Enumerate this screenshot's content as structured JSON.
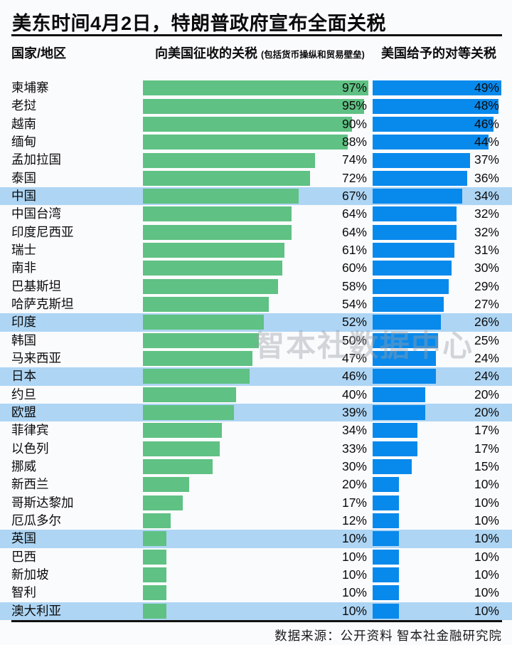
{
  "title": "美东时间4月2日，特朗普政府宣布全面关税",
  "header": {
    "country": "国家/地区",
    "charged": "向美国征收的关税",
    "charged_note": "(包括货币操纵和贸易壁垒)",
    "reciprocal": "美国给予的对等关税"
  },
  "watermark": "智本社数据中心",
  "footer": "数据来源：公开资料  智本社金融研究院",
  "colors": {
    "charged_bar": "#5fc183",
    "reciprocal_bar": "#0889ec",
    "highlight_row": "#aed5f4",
    "background": "#fafbfd",
    "text": "#0b0b0b"
  },
  "chart_data": {
    "type": "bar",
    "orientation": "horizontal",
    "unit": "%",
    "title": "美东时间4月2日，特朗普政府宣布全面关税",
    "legend_position": "column-headers",
    "grid": false,
    "axis_range": [
      0,
      100
    ],
    "series": [
      {
        "name": "向美国征收的关税 (包括货币操纵和贸易壁垒)",
        "color": "#5fc183"
      },
      {
        "name": "美国给予的对等关税",
        "color": "#0889ec"
      }
    ],
    "rows": [
      {
        "country": "柬埔寨",
        "charged": 97,
        "reciprocal": 49,
        "highlighted": false
      },
      {
        "country": "老挝",
        "charged": 95,
        "reciprocal": 48,
        "highlighted": false
      },
      {
        "country": "越南",
        "charged": 90,
        "reciprocal": 46,
        "highlighted": false
      },
      {
        "country": "缅甸",
        "charged": 88,
        "reciprocal": 44,
        "highlighted": false
      },
      {
        "country": "孟加拉国",
        "charged": 74,
        "reciprocal": 37,
        "highlighted": false
      },
      {
        "country": "泰国",
        "charged": 72,
        "reciprocal": 36,
        "highlighted": false
      },
      {
        "country": "中国",
        "charged": 67,
        "reciprocal": 34,
        "highlighted": true
      },
      {
        "country": "中国台湾",
        "charged": 64,
        "reciprocal": 32,
        "highlighted": false
      },
      {
        "country": "印度尼西亚",
        "charged": 64,
        "reciprocal": 32,
        "highlighted": false
      },
      {
        "country": "瑞士",
        "charged": 61,
        "reciprocal": 31,
        "highlighted": false
      },
      {
        "country": "南非",
        "charged": 60,
        "reciprocal": 30,
        "highlighted": false
      },
      {
        "country": "巴基斯坦",
        "charged": 58,
        "reciprocal": 29,
        "highlighted": false
      },
      {
        "country": "哈萨克斯坦",
        "charged": 54,
        "reciprocal": 27,
        "highlighted": false
      },
      {
        "country": "印度",
        "charged": 52,
        "reciprocal": 26,
        "highlighted": true
      },
      {
        "country": "韩国",
        "charged": 50,
        "reciprocal": 25,
        "highlighted": false
      },
      {
        "country": "马来西亚",
        "charged": 47,
        "reciprocal": 24,
        "highlighted": false
      },
      {
        "country": "日本",
        "charged": 46,
        "reciprocal": 24,
        "highlighted": true
      },
      {
        "country": "约旦",
        "charged": 40,
        "reciprocal": 20,
        "highlighted": false
      },
      {
        "country": "欧盟",
        "charged": 39,
        "reciprocal": 20,
        "highlighted": true
      },
      {
        "country": "菲律宾",
        "charged": 34,
        "reciprocal": 17,
        "highlighted": false
      },
      {
        "country": "以色列",
        "charged": 33,
        "reciprocal": 17,
        "highlighted": false
      },
      {
        "country": "挪威",
        "charged": 30,
        "reciprocal": 15,
        "highlighted": false
      },
      {
        "country": "新西兰",
        "charged": 20,
        "reciprocal": 10,
        "highlighted": false
      },
      {
        "country": "哥斯达黎加",
        "charged": 17,
        "reciprocal": 10,
        "highlighted": false
      },
      {
        "country": "厄瓜多尔",
        "charged": 12,
        "reciprocal": 10,
        "highlighted": false
      },
      {
        "country": "英国",
        "charged": 10,
        "reciprocal": 10,
        "highlighted": true
      },
      {
        "country": "巴西",
        "charged": 10,
        "reciprocal": 10,
        "highlighted": false
      },
      {
        "country": "新加坡",
        "charged": 10,
        "reciprocal": 10,
        "highlighted": false
      },
      {
        "country": "智利",
        "charged": 10,
        "reciprocal": 10,
        "highlighted": false
      },
      {
        "country": "澳大利亚",
        "charged": 10,
        "reciprocal": 10,
        "highlighted": true
      }
    ]
  }
}
